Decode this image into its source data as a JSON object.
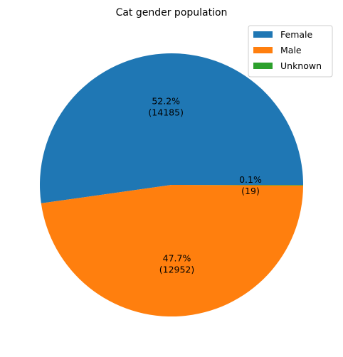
{
  "chart_data": {
    "type": "pie",
    "title": "Cat gender population",
    "legend_position": "top-right",
    "slices": [
      {
        "label": "Female",
        "value": 14185,
        "percent_label": "52.2%",
        "value_label": "(14185)",
        "color": "#1f77b4"
      },
      {
        "label": "Male",
        "value": 12952,
        "percent_label": "47.7%",
        "value_label": "(12952)",
        "color": "#ff7f0e"
      },
      {
        "label": "Unknown",
        "value": 19,
        "percent_label": "0.1%",
        "value_label": "(19)",
        "color": "#2ca02c"
      }
    ]
  }
}
